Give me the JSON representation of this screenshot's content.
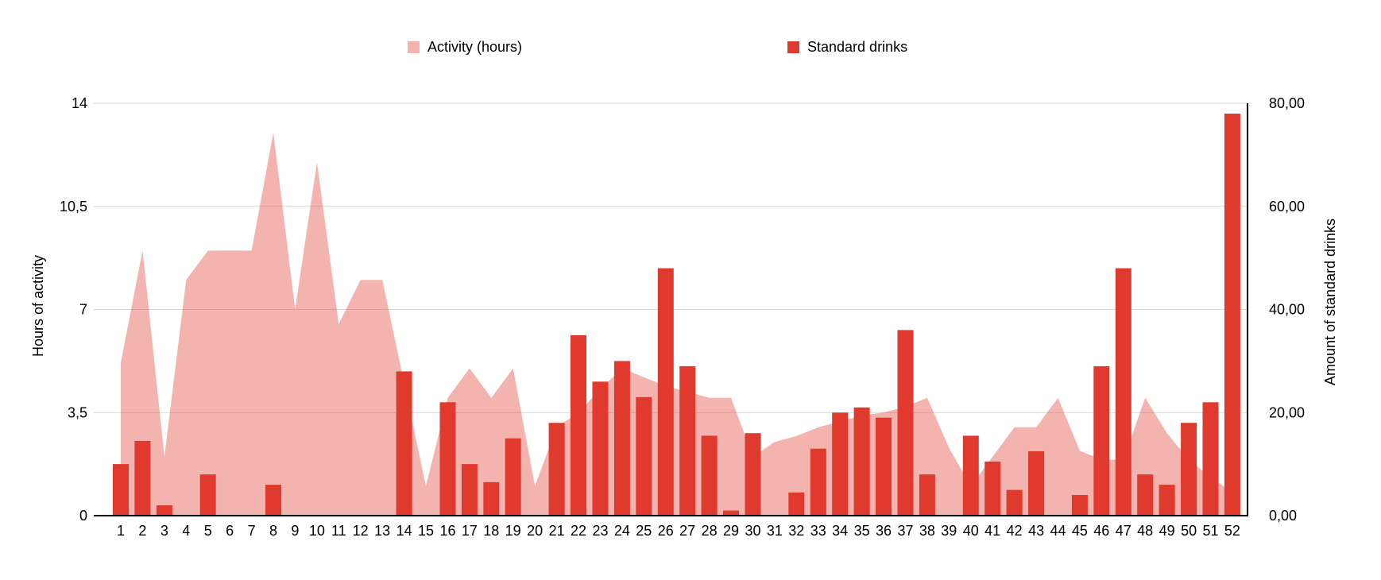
{
  "legend": {
    "items": [
      {
        "label": "Activity (hours)",
        "swatch_color": "#f4b4ae"
      },
      {
        "label": "Standard drinks",
        "swatch_color": "#e0392e"
      }
    ]
  },
  "axes": {
    "left": {
      "title": "Hours of activity",
      "tick_labels": [
        "14",
        "10,5",
        "7",
        "3,5",
        "0"
      ]
    },
    "right": {
      "title": "Amount of standard drinks",
      "tick_labels": [
        "80,00",
        "60,00",
        "40,00",
        "20,00",
        "0,00"
      ]
    }
  },
  "colors": {
    "bar": "#e0392e",
    "area_fill": "rgba(224,58,45,0.38)",
    "gridline": "#d9d9d9",
    "axis_line": "#000000",
    "text": "#000000",
    "background": "#ffffff"
  },
  "chart_data": {
    "type": "combo",
    "categories": [
      "1",
      "2",
      "3",
      "4",
      "5",
      "6",
      "7",
      "8",
      "9",
      "10",
      "11",
      "12",
      "13",
      "14",
      "15",
      "16",
      "17",
      "18",
      "19",
      "20",
      "21",
      "22",
      "23",
      "24",
      "25",
      "26",
      "27",
      "28",
      "29",
      "30",
      "31",
      "32",
      "33",
      "34",
      "35",
      "36",
      "37",
      "38",
      "39",
      "40",
      "41",
      "42",
      "43",
      "44",
      "45",
      "46",
      "47",
      "48",
      "49",
      "50",
      "51",
      "52"
    ],
    "series": [
      {
        "name": "Activity (hours)",
        "type": "area",
        "y_axis": "left",
        "color": "rgba(224,58,45,0.38)",
        "values": [
          5.2,
          9,
          2,
          8,
          9,
          9,
          9,
          13,
          7,
          12,
          6.5,
          8,
          8,
          4.5,
          1,
          4,
          5,
          4,
          5,
          1,
          3,
          3.5,
          4.3,
          5,
          4.7,
          4.4,
          4.2,
          4,
          4,
          2,
          2.5,
          2.7,
          3,
          3.2,
          3.4,
          3.5,
          3.7,
          4,
          2.3,
          1,
          2,
          3,
          3,
          4,
          2.2,
          1.9,
          1.9,
          4,
          2.8,
          1.9,
          1.3,
          0.8
        ]
      },
      {
        "name": "Standard drinks",
        "type": "bar",
        "y_axis": "right",
        "color": "#e0392e",
        "values": [
          10,
          14.5,
          2,
          0,
          8,
          0,
          0,
          6,
          0,
          0,
          0,
          0,
          0,
          28,
          0,
          22,
          10,
          6.5,
          15,
          0,
          18,
          35,
          26,
          30,
          23,
          48,
          29,
          15.5,
          1,
          16,
          0,
          4.5,
          13,
          20,
          21,
          19,
          36,
          8,
          0,
          15.5,
          10.5,
          5,
          12.5,
          0,
          4,
          29,
          48,
          8,
          6,
          18,
          22,
          78
        ]
      }
    ],
    "left_axis": {
      "label": "Hours of activity",
      "range": [
        0,
        14
      ],
      "tick_values": [
        0,
        3.5,
        7,
        10.5,
        14
      ]
    },
    "right_axis": {
      "label": "Amount of standard drinks",
      "range": [
        0,
        80
      ],
      "tick_values": [
        0,
        20,
        40,
        60,
        80
      ]
    },
    "grid": true,
    "legend_position": "top"
  }
}
